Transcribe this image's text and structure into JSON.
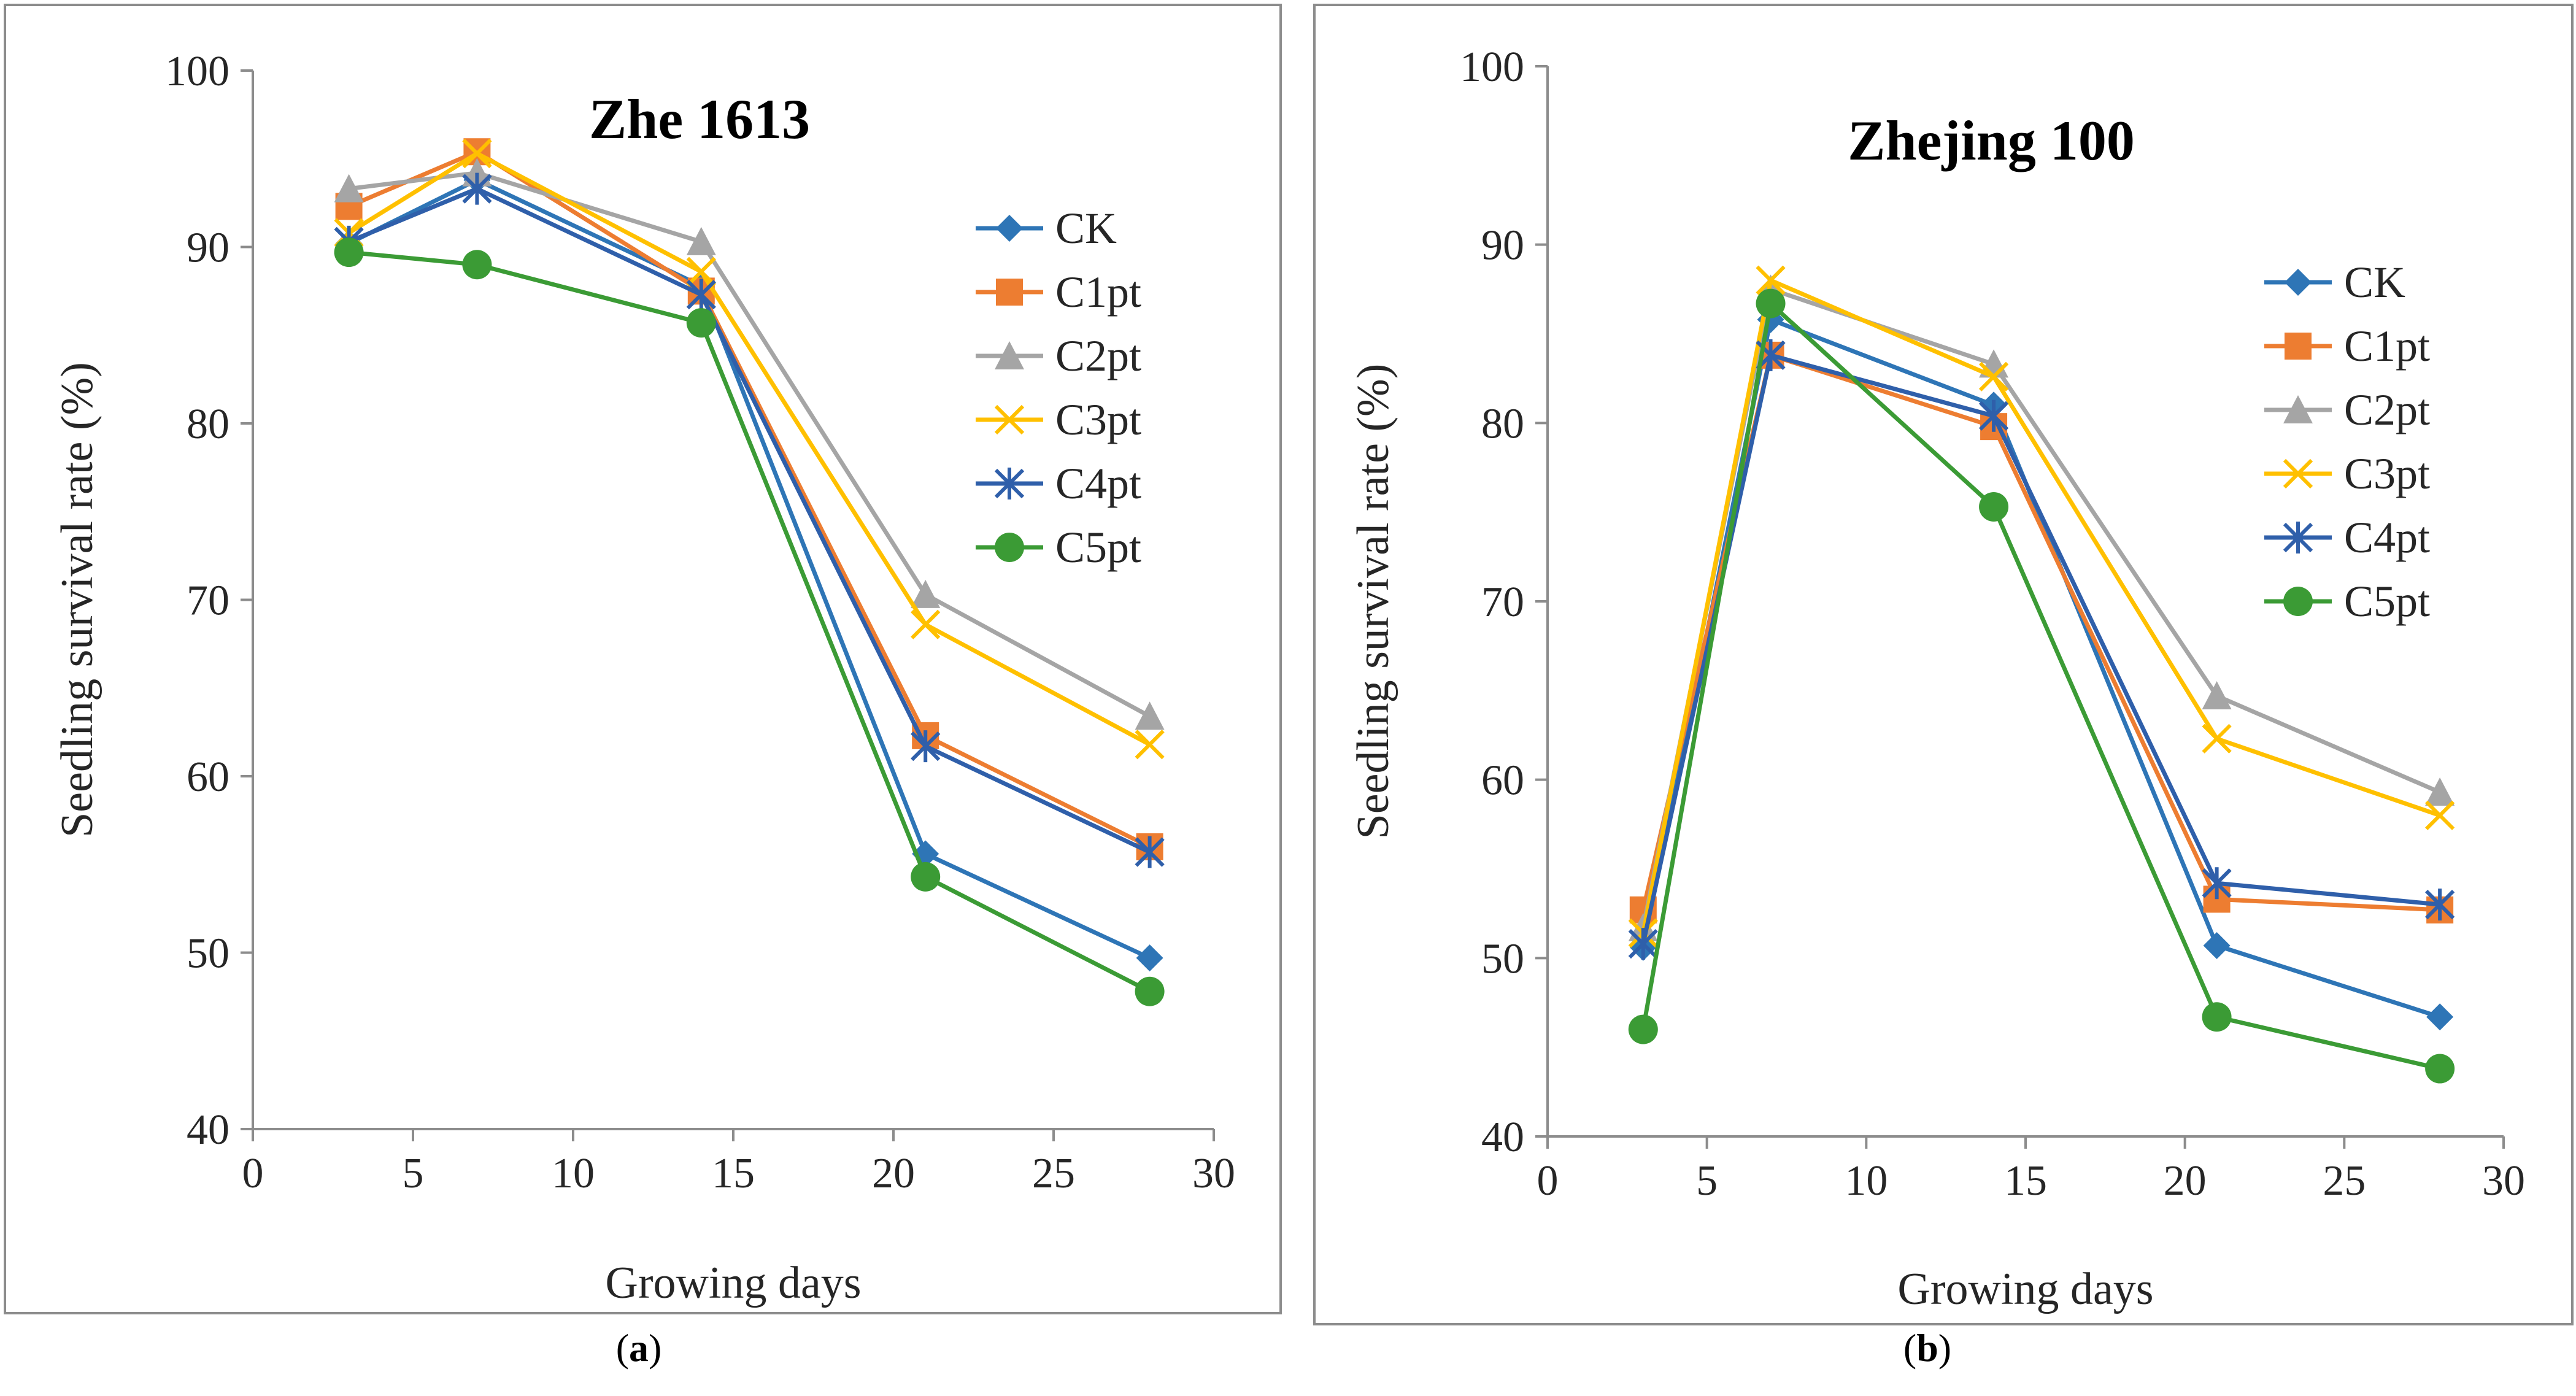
{
  "captions": [
    {
      "open": "(",
      "letter": "a",
      "close": ")"
    },
    {
      "open": "(",
      "letter": "b",
      "close": ")"
    }
  ],
  "series_colors": {
    "CK": "#2e75b6",
    "C1pt": "#ed7d31",
    "C2pt": "#a5a5a5",
    "C3pt": "#ffc000",
    "C4pt": "#2f5faa",
    "C5pt": "#3b9b35"
  },
  "series_markers": {
    "CK": "diamond",
    "C1pt": "square",
    "C2pt": "triangle",
    "C3pt": "x",
    "C4pt": "asterisk",
    "C5pt": "circle"
  },
  "chart_data": [
    {
      "type": "line",
      "title": "Zhe 1613",
      "xlabel": "Growing days",
      "ylabel": "Seedling survival rate (%)",
      "xlim": [
        0,
        30
      ],
      "ylim": [
        40,
        100
      ],
      "xticks": [
        0,
        5,
        10,
        15,
        20,
        25,
        30
      ],
      "yticks": [
        40,
        50,
        60,
        70,
        80,
        90,
        100
      ],
      "legend_position": "right",
      "x": [
        3,
        7,
        14,
        21,
        28
      ],
      "series": [
        {
          "name": "CK",
          "values": [
            90.2,
            93.8,
            87.8,
            55.6,
            49.7
          ]
        },
        {
          "name": "C1pt",
          "values": [
            92.3,
            95.4,
            87.5,
            62.3,
            56.0
          ]
        },
        {
          "name": "C2pt",
          "values": [
            93.3,
            94.2,
            90.3,
            70.3,
            63.4
          ]
        },
        {
          "name": "C3pt",
          "values": [
            90.8,
            95.3,
            88.6,
            68.6,
            61.8
          ]
        },
        {
          "name": "C4pt",
          "values": [
            90.3,
            93.3,
            87.3,
            61.7,
            55.7
          ]
        },
        {
          "name": "C5pt",
          "values": [
            89.7,
            89.0,
            85.7,
            54.3,
            47.8
          ]
        }
      ]
    },
    {
      "type": "line",
      "title": "Zhejing 100",
      "xlabel": "Growing days",
      "ylabel": "Seedling survival rate (%)",
      "xlim": [
        0,
        30
      ],
      "ylim": [
        40,
        100
      ],
      "xticks": [
        0,
        5,
        10,
        15,
        20,
        25,
        30
      ],
      "yticks": [
        40,
        50,
        60,
        70,
        80,
        90,
        100
      ],
      "legend_position": "right",
      "x": [
        3,
        7,
        14,
        21,
        28
      ],
      "series": [
        {
          "name": "CK",
          "values": [
            50.6,
            85.8,
            81.0,
            50.7,
            46.7
          ]
        },
        {
          "name": "C1pt",
          "values": [
            52.7,
            83.8,
            79.8,
            53.3,
            52.7
          ]
        },
        {
          "name": "C2pt",
          "values": [
            51.7,
            87.5,
            83.3,
            64.7,
            59.3
          ]
        },
        {
          "name": "C3pt",
          "values": [
            51.4,
            88.0,
            82.6,
            62.3,
            58.0
          ]
        },
        {
          "name": "C4pt",
          "values": [
            50.8,
            83.8,
            80.4,
            54.2,
            53.0
          ]
        },
        {
          "name": "C5pt",
          "values": [
            46.0,
            86.7,
            75.3,
            46.7,
            43.8
          ]
        }
      ]
    }
  ]
}
